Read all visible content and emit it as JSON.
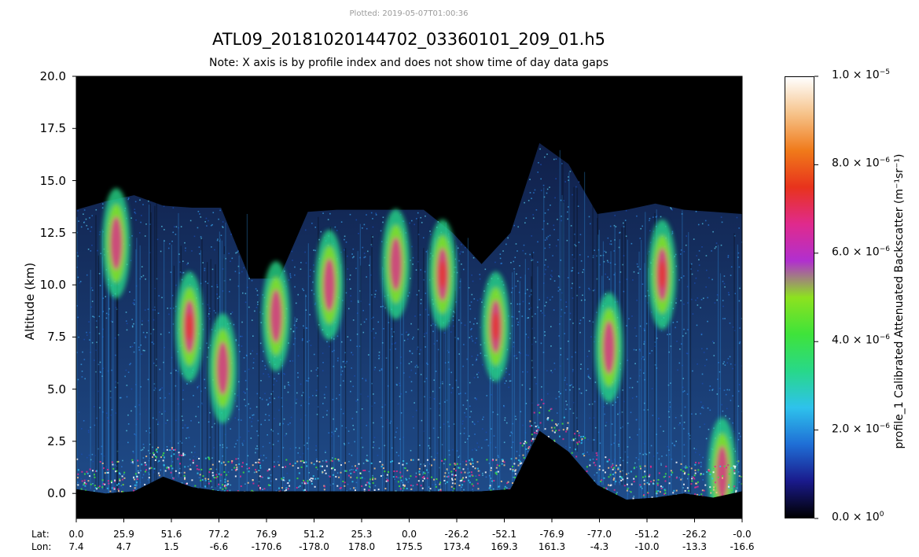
{
  "header": {
    "plotted": "Plotted: 2019-05-07T01:00:36",
    "title": "ATL09_20181020144702_03360101_209_01.h5",
    "subtitle": "Note: X axis is by profile index and does not show time of day data gaps"
  },
  "chart_data": {
    "type": "heatmap",
    "ylabel": "Altitude (km)",
    "ylim": [
      -1.2,
      20.0
    ],
    "yticks": [
      "20.0",
      "17.5",
      "15.0",
      "12.5",
      "10.0",
      "7.5",
      "5.0",
      "2.5",
      "0.0"
    ],
    "ytick_values": [
      20.0,
      17.5,
      15.0,
      12.5,
      10.0,
      7.5,
      5.0,
      2.5,
      0.0
    ],
    "x_row_labels": {
      "lat": "Lat:",
      "lon": "Lon:"
    },
    "lat_ticks": [
      "0.0",
      "25.9",
      "51.6",
      "77.2",
      "76.9",
      "51.2",
      "25.3",
      "0.0",
      "-26.2",
      "-52.1",
      "-76.9",
      "-77.0",
      "-51.2",
      "-26.2",
      "-0.0"
    ],
    "lon_ticks": [
      "7.4",
      "4.7",
      "1.5",
      "-6.6",
      "-170.6",
      "-178.0",
      "178.0",
      "175.5",
      "173.4",
      "169.3",
      "161.3",
      "-4.3",
      "-10.0",
      "-13.3",
      "-16.6"
    ],
    "colorbar": {
      "label": "profile_1 Calibrated Attenuated Backscatter (m⁻¹sr⁻¹)",
      "range": [
        0.0,
        1e-05
      ],
      "ticks": [
        {
          "value": 1e-05,
          "mantissa": "1.0 × 10",
          "exp": "−5"
        },
        {
          "value": 8e-06,
          "mantissa": "8.0 × 10",
          "exp": "−6"
        },
        {
          "value": 6e-06,
          "mantissa": "6.0 × 10",
          "exp": "−6"
        },
        {
          "value": 4e-06,
          "mantissa": "4.0 × 10",
          "exp": "−6"
        },
        {
          "value": 2e-06,
          "mantissa": "2.0 × 10",
          "exp": "−6"
        },
        {
          "value": 0.0,
          "mantissa": "0.0 × 10",
          "exp": "0"
        }
      ],
      "colormap": [
        "#000000",
        "#1a1a8c",
        "#1f6fd6",
        "#2ec2ec",
        "#28d889",
        "#3fe33a",
        "#8de21f",
        "#b12fcf",
        "#e02a8c",
        "#e8331c",
        "#f07a1a",
        "#f6c38a",
        "#ffffff"
      ]
    },
    "topography_km": [
      0.2,
      0.0,
      0.1,
      0.8,
      0.3,
      0.1,
      0.1,
      0.1,
      0.1,
      0.1,
      0.1,
      0.1,
      0.1,
      0.1,
      0.1,
      0.2,
      3.0,
      2.0,
      0.4,
      -0.3,
      -0.2,
      0.0,
      -0.2,
      0.1
    ],
    "cloud_top_km": [
      13.6,
      14.0,
      14.3,
      13.8,
      13.7,
      13.7,
      10.3,
      10.3,
      13.5,
      13.6,
      13.6,
      13.6,
      13.6,
      12.5,
      11.0,
      12.5,
      16.8,
      15.8,
      13.4,
      13.6,
      13.9,
      13.6,
      13.5,
      13.4
    ],
    "cloud_features": [
      {
        "x": 0.06,
        "y": 12.0,
        "intensity": 0.8
      },
      {
        "x": 0.17,
        "y": 8.0,
        "intensity": 0.9
      },
      {
        "x": 0.22,
        "y": 6.0,
        "intensity": 0.8
      },
      {
        "x": 0.3,
        "y": 8.5,
        "intensity": 0.7
      },
      {
        "x": 0.38,
        "y": 10.0,
        "intensity": 0.7
      },
      {
        "x": 0.48,
        "y": 11.0,
        "intensity": 0.8
      },
      {
        "x": 0.55,
        "y": 10.5,
        "intensity": 0.9
      },
      {
        "x": 0.63,
        "y": 8.0,
        "intensity": 1.0
      },
      {
        "x": 0.8,
        "y": 7.0,
        "intensity": 0.6
      },
      {
        "x": 0.88,
        "y": 10.5,
        "intensity": 0.9
      },
      {
        "x": 0.97,
        "y": 1.0,
        "intensity": 0.8
      }
    ]
  }
}
